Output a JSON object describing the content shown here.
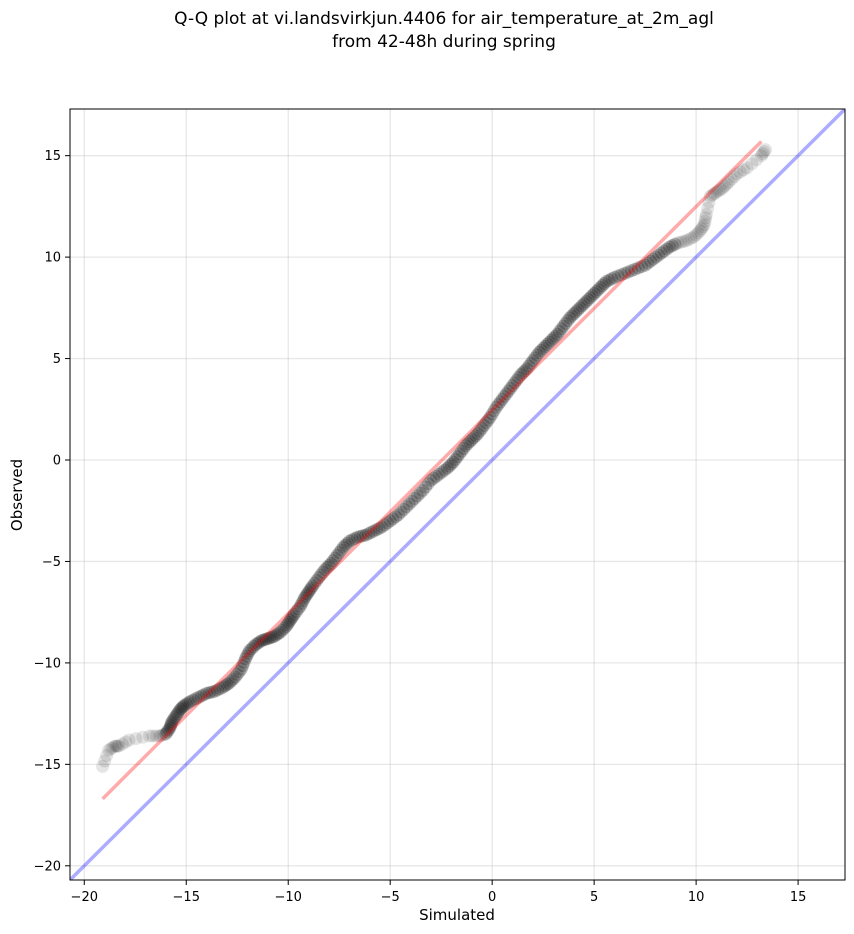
{
  "chart_data": {
    "type": "scatter",
    "title_lines": [
      "Q-Q plot at vi.landsvirkjun.4406 for air_temperature_at_2m_agl",
      "from 42-48h during spring"
    ],
    "xlabel": "Simulated",
    "ylabel": "Observed",
    "xlim": [
      -20.7,
      17.3
    ],
    "ylim": [
      -20.7,
      17.3
    ],
    "xticks": [
      -20,
      -15,
      -10,
      -5,
      0,
      5,
      10,
      15
    ],
    "yticks": [
      -20,
      -15,
      -10,
      -5,
      0,
      5,
      10,
      15
    ],
    "xtick_labels": [
      "−20",
      "−15",
      "−10",
      "−5",
      "0",
      "5",
      "10",
      "15"
    ],
    "ytick_labels": [
      "−20",
      "−15",
      "−10",
      "−5",
      "0",
      "5",
      "10",
      "15"
    ],
    "grid": true,
    "series": [
      {
        "kind": "quantile-points",
        "color": "#000000",
        "points": [
          [
            -19.1,
            -15.1
          ],
          [
            -18.8,
            -14.3
          ],
          [
            -18.5,
            -14.1
          ],
          [
            -18.3,
            -14.1
          ],
          [
            -17.8,
            -13.8
          ],
          [
            -16.8,
            -13.6
          ],
          [
            -16.3,
            -13.6
          ],
          [
            -16.0,
            -13.5
          ],
          [
            -15.8,
            -13.2
          ],
          [
            -15.7,
            -12.9
          ],
          [
            -15.5,
            -12.6
          ],
          [
            -15.3,
            -12.3
          ],
          [
            -15.1,
            -12.1
          ],
          [
            -14.8,
            -11.9
          ],
          [
            -14.4,
            -11.7
          ],
          [
            -14.0,
            -11.5
          ],
          [
            -13.6,
            -11.4
          ],
          [
            -13.2,
            -11.2
          ],
          [
            -12.9,
            -11.0
          ],
          [
            -12.6,
            -10.7
          ],
          [
            -12.3,
            -10.3
          ],
          [
            -12.1,
            -9.8
          ],
          [
            -11.9,
            -9.4
          ],
          [
            -11.6,
            -9.1
          ],
          [
            -11.3,
            -8.9
          ],
          [
            -11.0,
            -8.8
          ],
          [
            -10.7,
            -8.7
          ],
          [
            -10.4,
            -8.5
          ],
          [
            -10.1,
            -8.2
          ],
          [
            -9.9,
            -7.9
          ],
          [
            -9.7,
            -7.6
          ],
          [
            -9.4,
            -7.2
          ],
          [
            -9.2,
            -6.8
          ],
          [
            -9.0,
            -6.5
          ],
          [
            -8.8,
            -6.2
          ],
          [
            -8.5,
            -5.8
          ],
          [
            -8.2,
            -5.4
          ],
          [
            -7.9,
            -5.1
          ],
          [
            -7.6,
            -4.7
          ],
          [
            -7.3,
            -4.3
          ],
          [
            -7.0,
            -4.0
          ],
          [
            -6.6,
            -3.8
          ],
          [
            -6.2,
            -3.7
          ],
          [
            -5.8,
            -3.5
          ],
          [
            -5.4,
            -3.3
          ],
          [
            -5.0,
            -3.0
          ],
          [
            -4.6,
            -2.7
          ],
          [
            -4.2,
            -2.3
          ],
          [
            -3.8,
            -1.9
          ],
          [
            -3.4,
            -1.5
          ],
          [
            -3.0,
            -1.0
          ],
          [
            -2.6,
            -0.7
          ],
          [
            -2.2,
            -0.4
          ],
          [
            -1.9,
            -0.1
          ],
          [
            -1.6,
            0.3
          ],
          [
            -1.3,
            0.7
          ],
          [
            -1.0,
            1.0
          ],
          [
            -0.7,
            1.3
          ],
          [
            -0.4,
            1.7
          ],
          [
            -0.1,
            2.1
          ],
          [
            0.2,
            2.6
          ],
          [
            0.5,
            3.0
          ],
          [
            0.8,
            3.4
          ],
          [
            1.1,
            3.8
          ],
          [
            1.4,
            4.2
          ],
          [
            1.7,
            4.5
          ],
          [
            2.0,
            4.9
          ],
          [
            2.3,
            5.3
          ],
          [
            2.6,
            5.6
          ],
          [
            2.9,
            5.9
          ],
          [
            3.2,
            6.2
          ],
          [
            3.5,
            6.6
          ],
          [
            3.8,
            7.0
          ],
          [
            4.1,
            7.3
          ],
          [
            4.4,
            7.6
          ],
          [
            4.7,
            7.9
          ],
          [
            5.0,
            8.2
          ],
          [
            5.3,
            8.5
          ],
          [
            5.6,
            8.8
          ],
          [
            6.0,
            9.0
          ],
          [
            6.5,
            9.2
          ],
          [
            7.0,
            9.4
          ],
          [
            7.5,
            9.6
          ],
          [
            7.9,
            9.9
          ],
          [
            8.3,
            10.2
          ],
          [
            8.7,
            10.5
          ],
          [
            9.1,
            10.7
          ],
          [
            9.5,
            10.8
          ],
          [
            9.9,
            11.0
          ],
          [
            10.2,
            11.3
          ],
          [
            10.4,
            11.6
          ],
          [
            10.5,
            12.1
          ],
          [
            10.7,
            13.0
          ],
          [
            11.0,
            13.2
          ],
          [
            11.3,
            13.4
          ],
          [
            11.6,
            13.7
          ],
          [
            12.0,
            14.1
          ],
          [
            12.5,
            14.4
          ],
          [
            13.2,
            15.0
          ],
          [
            13.4,
            15.3
          ]
        ]
      },
      {
        "kind": "fit-line",
        "color": "#ff0000",
        "from": [
          -19.1,
          -16.7
        ],
        "to": [
          13.2,
          15.7
        ]
      },
      {
        "kind": "identity-line",
        "color": "#0000ff",
        "from": [
          -20.7,
          -20.7
        ],
        "to": [
          17.3,
          17.3
        ]
      }
    ]
  }
}
